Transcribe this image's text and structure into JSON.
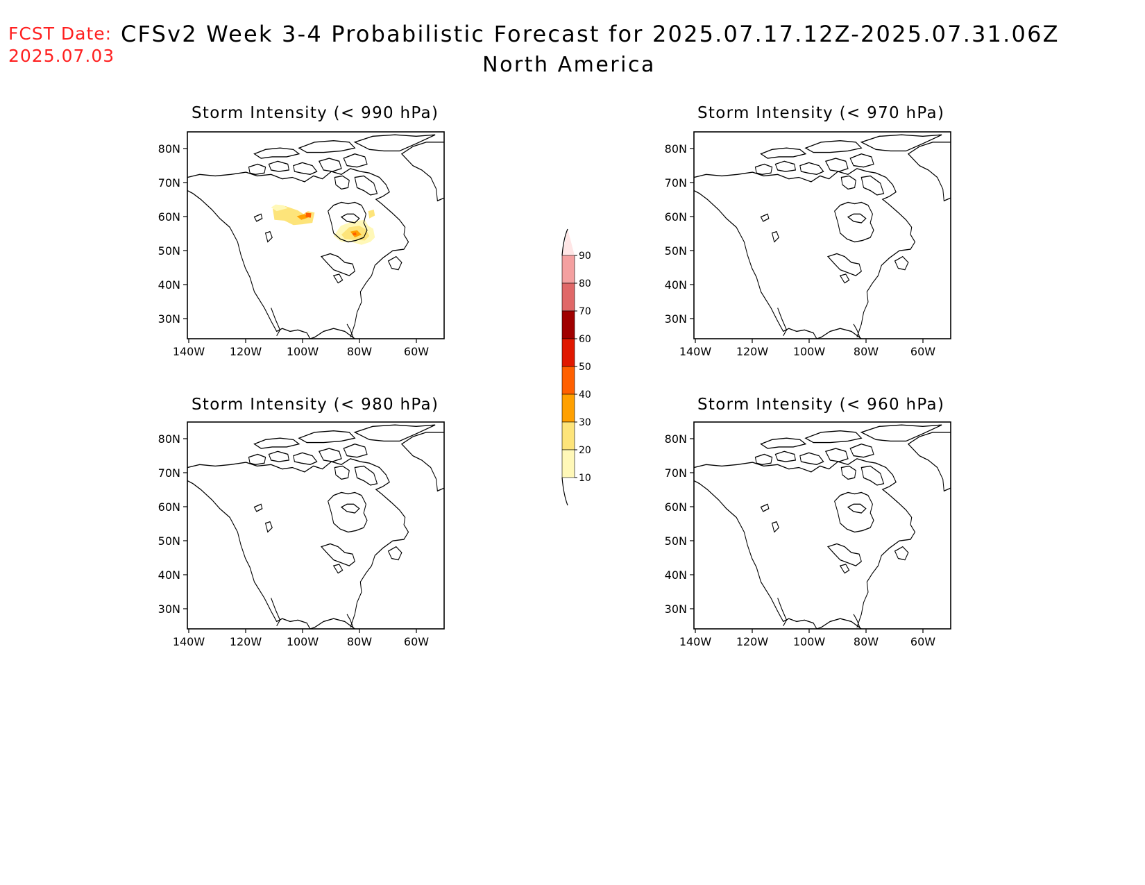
{
  "header": {
    "fcst_label": "FCST Date:",
    "fcst_date": "2025.07.03",
    "title": "CFSv2 Week 3-4 Probabilistic Forecast for 2025.07.17.12Z-2025.07.31.06Z",
    "subtitle": "North America"
  },
  "map": {
    "region": "North America",
    "lon_ticks": [
      "140W",
      "120W",
      "100W",
      "80W",
      "60W"
    ],
    "lat_ticks": [
      "80N",
      "70N",
      "60N",
      "50N",
      "40N",
      "30N"
    ],
    "panels": [
      {
        "id": "p990",
        "title": "Storm Intensity (< 990 hPa)",
        "threshold_hpa": 990,
        "has_probability_shading": true,
        "shaded_areas": [
          {
            "region": "northern Canada interior (Great Slave Lake area)",
            "probability_range": "10-40"
          },
          {
            "region": "Hudson Bay south / Ontario-Quebec",
            "probability_range": "10-40"
          }
        ]
      },
      {
        "id": "p970",
        "title": "Storm Intensity (< 970 hPa)",
        "threshold_hpa": 970,
        "has_probability_shading": false,
        "shaded_areas": []
      },
      {
        "id": "p980",
        "title": "Storm Intensity (< 980 hPa)",
        "threshold_hpa": 980,
        "has_probability_shading": false,
        "shaded_areas": []
      },
      {
        "id": "p960",
        "title": "Storm Intensity (< 960 hPa)",
        "threshold_hpa": 960,
        "has_probability_shading": false,
        "shaded_areas": []
      }
    ]
  },
  "colorbar": {
    "levels": [
      "10",
      "20",
      "30",
      "40",
      "50",
      "60",
      "70",
      "80",
      "90"
    ],
    "colors": [
      "#fff8b8",
      "#fde47a",
      "#ffa000",
      "#ff6000",
      "#e01800",
      "#a00000",
      "#e06868",
      "#f4a0a0",
      "#ffe6e6"
    ]
  }
}
